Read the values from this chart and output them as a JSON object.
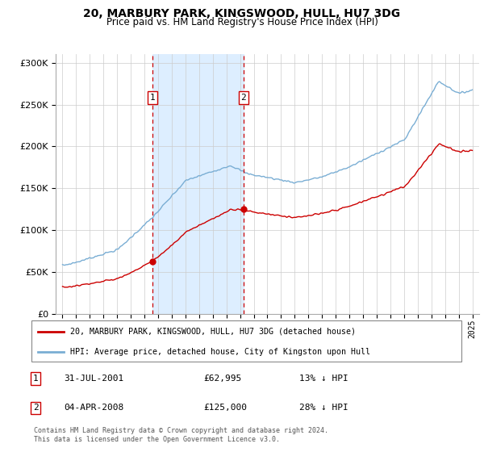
{
  "title": "20, MARBURY PARK, KINGSWOOD, HULL, HU7 3DG",
  "subtitle": "Price paid vs. HM Land Registry's House Price Index (HPI)",
  "sale1_date": "31-JUL-2001",
  "sale1_price": 62995,
  "sale1_label": "13% ↓ HPI",
  "sale2_date": "04-APR-2008",
  "sale2_price": 125000,
  "sale2_label": "28% ↓ HPI",
  "legend_line1": "20, MARBURY PARK, KINGSWOOD, HULL, HU7 3DG (detached house)",
  "legend_line2": "HPI: Average price, detached house, City of Kingston upon Hull",
  "footnote": "Contains HM Land Registry data © Crown copyright and database right 2024.\nThis data is licensed under the Open Government Licence v3.0.",
  "hpi_color": "#7aaed4",
  "price_color": "#cc0000",
  "sale_vline_color": "#cc0000",
  "shade_color": "#ddeeff",
  "background_color": "#ffffff",
  "ylim": [
    0,
    310000
  ],
  "yticks": [
    0,
    50000,
    100000,
    150000,
    200000,
    250000,
    300000
  ],
  "sale1_x": 2001.583,
  "sale2_x": 2008.25
}
